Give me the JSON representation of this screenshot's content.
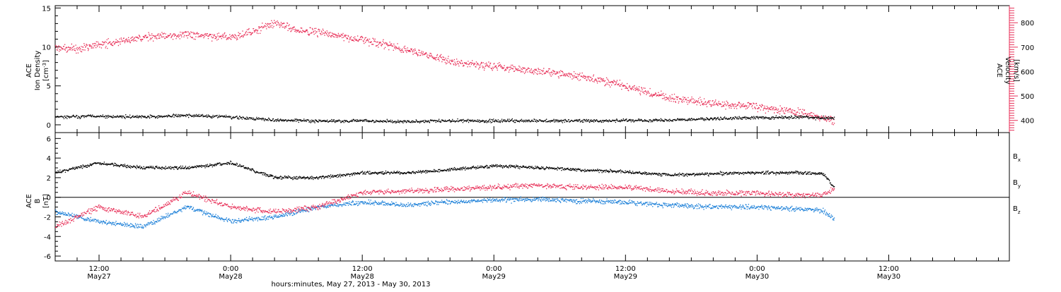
{
  "colors": {
    "black": "#000000",
    "red": "#e8325a",
    "blue": "#1a7fd8"
  },
  "chart_data": [
    {
      "type": "scatter",
      "panel": "top",
      "ylabel_left": [
        "ACE",
        "Ion Density",
        "[cm",
        "-3",
        "]"
      ],
      "ylabel_right": [
        "ACE",
        "Velocity",
        "[km/s]"
      ],
      "left_ylim": [
        -1,
        15.3
      ],
      "left_ticks": [
        "0",
        "5",
        "10",
        "15"
      ],
      "left_tick_values": [
        0,
        5,
        10,
        15
      ],
      "right_ylim": [
        350,
        870
      ],
      "right_ticks": [
        "400",
        "500",
        "600",
        "700",
        "800"
      ],
      "right_tick_values": [
        400,
        500,
        600,
        700,
        800
      ],
      "series": [
        {
          "axis": "left",
          "color": "#000000",
          "x": [
            "2013-05-27 08:00",
            "2013-05-27 12:00",
            "2013-05-27 16:00",
            "2013-05-27 20:00",
            "2013-05-28 00:00",
            "2013-05-28 04:00",
            "2013-05-28 08:00",
            "2013-05-28 12:00",
            "2013-05-28 16:00",
            "2013-05-28 20:00",
            "2013-05-29 00:00",
            "2013-05-29 04:00",
            "2013-05-29 08:00",
            "2013-05-29 12:00",
            "2013-05-29 16:00",
            "2013-05-29 20:00",
            "2013-05-30 00:00",
            "2013-05-30 04:00",
            "2013-05-30 07:00"
          ],
          "values": [
            1.0,
            1.1,
            1.0,
            1.2,
            1.0,
            0.6,
            0.5,
            0.5,
            0.4,
            0.5,
            0.5,
            0.5,
            0.5,
            0.5,
            0.6,
            0.8,
            0.9,
            1.0,
            0.8
          ]
        },
        {
          "axis": "right",
          "color": "#e8325a",
          "x": [
            "2013-05-27 08:00",
            "2013-05-27 10:00",
            "2013-05-27 12:00",
            "2013-05-27 16:00",
            "2013-05-27 20:00",
            "2013-05-28 00:00",
            "2013-05-28 02:00",
            "2013-05-28 04:00",
            "2013-05-28 06:00",
            "2013-05-28 08:00",
            "2013-05-28 12:00",
            "2013-05-28 16:00",
            "2013-05-28 20:00",
            "2013-05-29 00:00",
            "2013-05-29 04:00",
            "2013-05-29 08:00",
            "2013-05-29 12:00",
            "2013-05-29 16:00",
            "2013-05-29 20:00",
            "2013-05-30 00:00",
            "2013-05-30 04:00",
            "2013-05-30 07:00"
          ],
          "values": [
            700,
            690,
            710,
            740,
            750,
            740,
            760,
            800,
            770,
            760,
            730,
            690,
            640,
            620,
            600,
            580,
            540,
            490,
            470,
            455,
            430,
            400
          ]
        }
      ]
    },
    {
      "type": "scatter",
      "panel": "bottom",
      "ylabel": [
        "ACE",
        "B",
        "[nT]"
      ],
      "ylim": [
        -6.5,
        6.6
      ],
      "ticks": [
        "-6",
        "-4",
        "-2",
        "0",
        "2",
        "4",
        "6"
      ],
      "tick_values": [
        -6,
        -4,
        -2,
        0,
        2,
        4,
        6
      ],
      "legend": [
        {
          "label": "B",
          "sub": "x",
          "color": "#000000"
        },
        {
          "label": "B",
          "sub": "y",
          "color": "#1a7fd8"
        },
        {
          "label": "B",
          "sub": "z",
          "color": "#e8325a"
        }
      ],
      "series": [
        {
          "name": "Bx",
          "color": "#000000",
          "x": [
            "2013-05-27 08:00",
            "2013-05-27 12:00",
            "2013-05-27 16:00",
            "2013-05-27 20:00",
            "2013-05-28 00:00",
            "2013-05-28 04:00",
            "2013-05-28 08:00",
            "2013-05-28 12:00",
            "2013-05-28 16:00",
            "2013-05-28 20:00",
            "2013-05-29 00:00",
            "2013-05-29 04:00",
            "2013-05-29 08:00",
            "2013-05-29 12:00",
            "2013-05-29 16:00",
            "2013-05-29 20:00",
            "2013-05-30 00:00",
            "2013-05-30 04:00",
            "2013-05-30 06:00",
            "2013-05-30 07:00"
          ],
          "values": [
            2.5,
            3.5,
            3.0,
            3.0,
            3.5,
            2.0,
            2.0,
            2.5,
            2.5,
            2.8,
            3.2,
            3.0,
            2.8,
            2.6,
            2.3,
            2.4,
            2.5,
            2.5,
            2.4,
            1.0
          ]
        },
        {
          "name": "By",
          "color": "#1a7fd8",
          "x": [
            "2013-05-27 08:00",
            "2013-05-27 12:00",
            "2013-05-27 16:00",
            "2013-05-27 20:00",
            "2013-05-28 00:00",
            "2013-05-28 04:00",
            "2013-05-28 08:00",
            "2013-05-28 12:00",
            "2013-05-28 16:00",
            "2013-05-28 20:00",
            "2013-05-29 00:00",
            "2013-05-29 04:00",
            "2013-05-29 08:00",
            "2013-05-29 12:00",
            "2013-05-29 16:00",
            "2013-05-29 20:00",
            "2013-05-30 00:00",
            "2013-05-30 04:00",
            "2013-05-30 06:00",
            "2013-05-30 07:00"
          ],
          "values": [
            -1.5,
            -2.5,
            -3.0,
            -1.0,
            -2.5,
            -2.0,
            -1.0,
            -0.5,
            -0.8,
            -0.5,
            -0.3,
            -0.2,
            -0.4,
            -0.5,
            -0.8,
            -1.0,
            -1.0,
            -1.2,
            -1.4,
            -2.2
          ]
        },
        {
          "name": "Bz",
          "color": "#e8325a",
          "x": [
            "2013-05-27 08:00",
            "2013-05-27 12:00",
            "2013-05-27 16:00",
            "2013-05-27 20:00",
            "2013-05-28 00:00",
            "2013-05-28 04:00",
            "2013-05-28 08:00",
            "2013-05-28 12:00",
            "2013-05-28 16:00",
            "2013-05-28 20:00",
            "2013-05-29 00:00",
            "2013-05-29 04:00",
            "2013-05-29 08:00",
            "2013-05-29 12:00",
            "2013-05-29 16:00",
            "2013-05-29 20:00",
            "2013-05-30 00:00",
            "2013-05-30 04:00",
            "2013-05-30 06:00",
            "2013-05-30 07:00"
          ],
          "values": [
            -3.0,
            -1.0,
            -2.0,
            0.5,
            -1.0,
            -1.5,
            -1.0,
            0.5,
            0.6,
            0.8,
            1.0,
            1.2,
            1.0,
            1.0,
            0.6,
            0.4,
            0.4,
            0.2,
            0.3,
            0.9
          ]
        }
      ]
    }
  ],
  "x_axis": {
    "range": [
      "2013-05-27 08:00",
      "2013-05-30 23:00"
    ],
    "major_ticks": [
      {
        "time": "2013-05-27 12:00",
        "label": "12:00",
        "date": "May27"
      },
      {
        "time": "2013-05-28 00:00",
        "label": "0:00",
        "date": "May28"
      },
      {
        "time": "2013-05-28 12:00",
        "label": "12:00",
        "date": "May28"
      },
      {
        "time": "2013-05-29 00:00",
        "label": "0:00",
        "date": "May29"
      },
      {
        "time": "2013-05-29 12:00",
        "label": "12:00",
        "date": "May29"
      },
      {
        "time": "2013-05-30 00:00",
        "label": "0:00",
        "date": "May30"
      },
      {
        "time": "2013-05-30 12:00",
        "label": "12:00",
        "date": "May30"
      }
    ],
    "minor_tick_hours": 2,
    "label": "hours:minutes, May 27, 2013 - May 30, 2013"
  }
}
